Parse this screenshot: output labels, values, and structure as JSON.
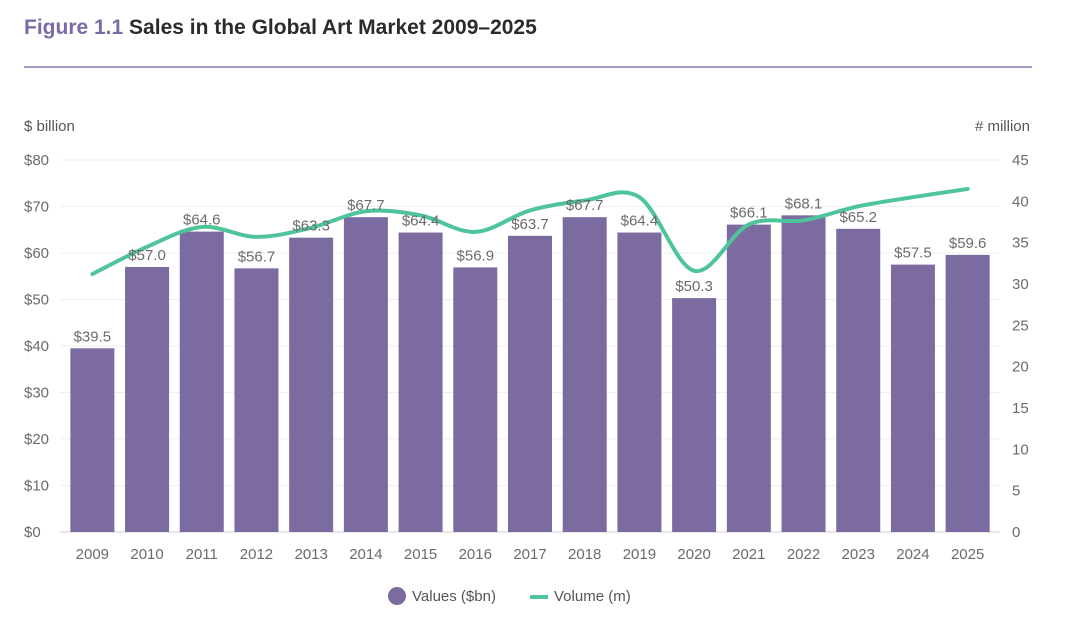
{
  "title": {
    "prefix": "Figure 1.1",
    "text": "Sales in the Global Art Market 2009–2025"
  },
  "chart_data": {
    "type": "bar",
    "categories": [
      "2009",
      "2010",
      "2011",
      "2012",
      "2013",
      "2014",
      "2015",
      "2016",
      "2017",
      "2018",
      "2019",
      "2020",
      "2021",
      "2022",
      "2023",
      "2024",
      "2025"
    ],
    "series": [
      {
        "name": "Values ($bn)",
        "type": "bar",
        "axis": "left",
        "color": "#7b6ba0",
        "values": [
          39.5,
          57.0,
          64.6,
          56.7,
          63.3,
          67.7,
          64.4,
          56.9,
          63.7,
          67.7,
          64.4,
          50.3,
          66.1,
          68.1,
          65.2,
          57.5,
          59.6
        ],
        "labels": [
          "$39.5",
          "$57.0",
          "$64.6",
          "$56.7",
          "$63.3",
          "$67.7",
          "$64.4",
          "$56.9",
          "$63.7",
          "$67.7",
          "$64.4",
          "$50.3",
          "$66.1",
          "$68.1",
          "$65.2",
          "$57.5",
          "$59.6"
        ]
      },
      {
        "name": "Volume (m)",
        "type": "line",
        "axis": "right",
        "color": "#4fc39a",
        "values": [
          31.2,
          34.5,
          36.9,
          35.7,
          36.8,
          38.8,
          38.3,
          36.3,
          38.9,
          40.1,
          40.5,
          31.6,
          37.2,
          37.7,
          39.4,
          40.5,
          41.5
        ]
      }
    ],
    "ylabel_left": "$ billion",
    "ylabel_right": "# million",
    "ylim_left": [
      0,
      80
    ],
    "ylim_right": [
      0,
      45
    ],
    "yticks_left": [
      "$0",
      "$10",
      "$20",
      "$30",
      "$40",
      "$50",
      "$60",
      "$70",
      "$80"
    ],
    "yticks_right": [
      "0",
      "5",
      "10",
      "15",
      "20",
      "25",
      "30",
      "35",
      "40",
      "45"
    ],
    "grid": true,
    "legend": "bottom-center"
  }
}
